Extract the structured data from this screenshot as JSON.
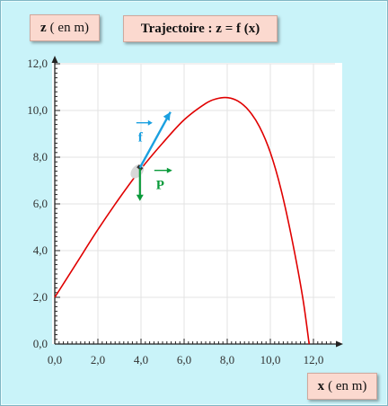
{
  "labels": {
    "z_axis_var": "z",
    "z_axis_unit": "( en m)",
    "title": "Trajectoire : z = f (x)",
    "x_axis_var": "x",
    "x_axis_unit": "( en m)"
  },
  "vectors": {
    "f_label": "f",
    "p_label": "P",
    "f_color": "#1aa0e0",
    "p_color": "#0a9a3a"
  },
  "chart_data": {
    "type": "line",
    "title": "Trajectoire : z = f (x)",
    "xlabel": "x ( en m)",
    "ylabel": "z ( en m)",
    "xlim": [
      0,
      13
    ],
    "ylim": [
      0,
      12
    ],
    "x_ticks": [
      "0,0",
      "2,0",
      "4,0",
      "6,0",
      "8,0",
      "10,0",
      "12,0"
    ],
    "y_ticks": [
      "0,0",
      "2,0",
      "4,0",
      "6,0",
      "8,0",
      "10,0",
      "12,0"
    ],
    "grid": true,
    "series": [
      {
        "color": "#e00000",
        "x": [
          0,
          1,
          2,
          3,
          4,
          5,
          6,
          7,
          7.5,
          8,
          8.5,
          9,
          9.5,
          10,
          10.5,
          11,
          11.5,
          11.8
        ],
        "y": [
          2.0,
          3.45,
          4.9,
          6.25,
          7.5,
          8.6,
          9.6,
          10.3,
          10.5,
          10.55,
          10.4,
          10.0,
          9.3,
          8.2,
          6.6,
          4.5,
          2.0,
          0.0
        ]
      }
    ],
    "point": {
      "x": 3.95,
      "y": 7.55
    }
  }
}
